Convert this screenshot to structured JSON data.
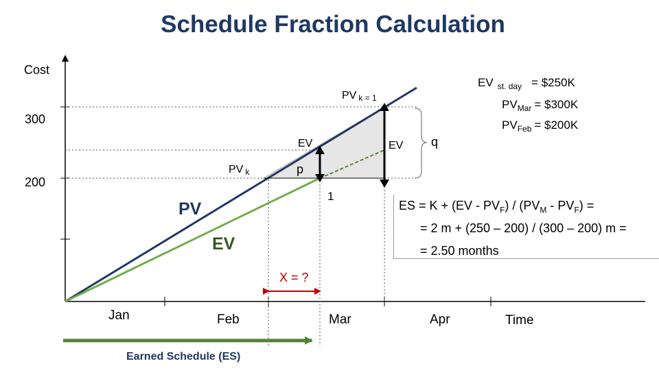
{
  "title": "Schedule Fraction Calculation",
  "axes": {
    "y_label": "Cost",
    "x_label": "Time",
    "y_ticks": [
      "300",
      "200"
    ],
    "x_ticks": [
      "Jan",
      "Feb",
      "Mar",
      "Apr"
    ]
  },
  "series": {
    "pv": {
      "label": "PV",
      "color": "#1f3864"
    },
    "ev": {
      "label": "EV",
      "color": "#70ad47"
    }
  },
  "annotations": {
    "pv_k1": "PV",
    "pv_k1_sub": "k = 1",
    "pv_k": "PV",
    "pv_k_sub": "k",
    "ev_point": "EV",
    "ev_right": "EV",
    "q": "q",
    "p": "p",
    "one": "1",
    "x_question": "X = ?",
    "es_label": "Earned Schedule (ES)"
  },
  "values": {
    "ev_stat_prefix": "EV",
    "ev_stat_sub": "st. day",
    "ev_stat_value": "=  $250K",
    "pv_mar_prefix": "PV",
    "pv_mar_sub": "Mar",
    "pv_mar_value": "=  $300K",
    "pv_feb_prefix": "PV",
    "pv_feb_sub": "Feb",
    "pv_feb_value": "=  $200K"
  },
  "formula": {
    "l1_a": "ES = K + (EV - PV",
    "l1_b": "F",
    "l1_c": ") / (PV",
    "l1_d": "M",
    "l1_e": " - PV",
    "l1_f": "F",
    "l1_g": ") =",
    "l2_a": "=  2 m + (250 – 200) / (300 – 200) m =",
    "l3": "=  2.50 months"
  },
  "colors": {
    "title": "#1f3864",
    "pv_line": "#1f3864",
    "ev_line": "#70ad47",
    "ev_text": "#375623",
    "x_question": "#c00000",
    "es_arrow": "#548235",
    "es_label": "#1f3864",
    "triangle_fill": "#e7e6e6"
  }
}
